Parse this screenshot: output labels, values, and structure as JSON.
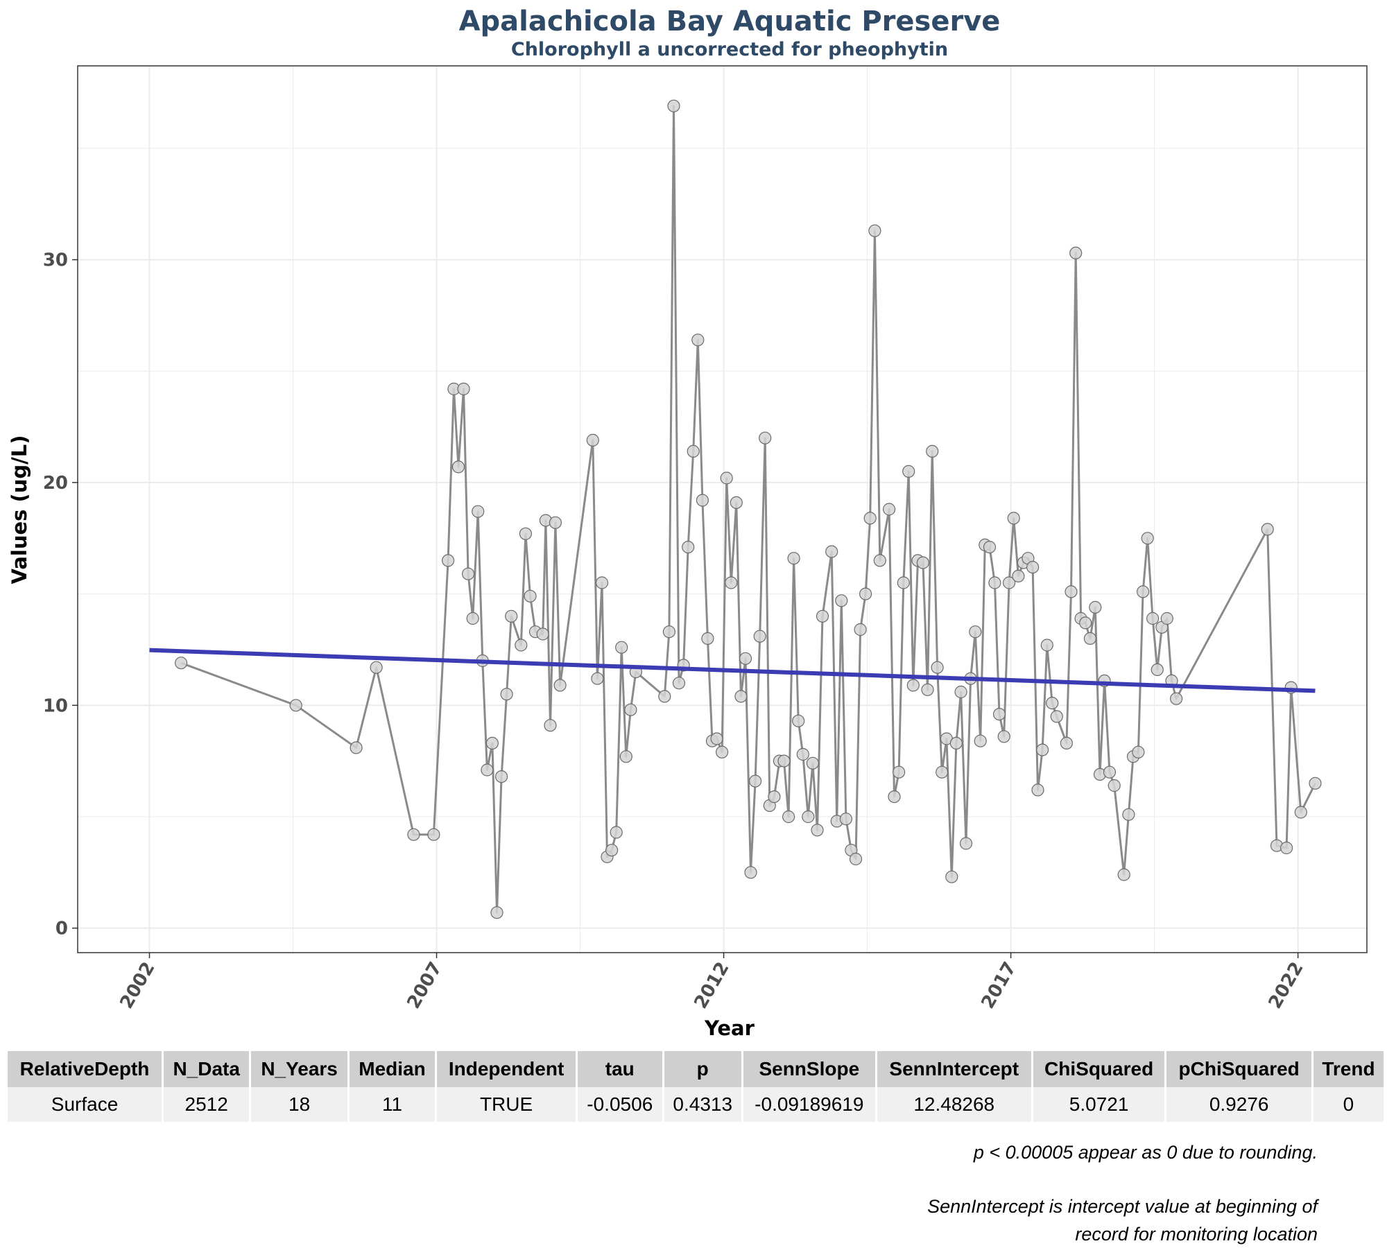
{
  "chart_data": {
    "type": "line",
    "title": "Apalachicola Bay Aquatic Preserve",
    "subtitle": "Chlorophyll a uncorrected for pheophytin",
    "xlabel": "Year",
    "ylabel": "Values (ug/L)",
    "xlim": [
      2000.75,
      2023.2
    ],
    "ylim": [
      -1.1,
      38.7
    ],
    "x_ticks": [
      2002,
      2007,
      2012,
      2017,
      2022
    ],
    "y_ticks": [
      0,
      10,
      20,
      30
    ],
    "grid": true,
    "colors": {
      "series_line": "#8a8a8a",
      "point_fill": "#d3d3d3",
      "trend_line": "#3b3bb3",
      "grid": "#ebebeb",
      "title": "#2e4a66"
    },
    "series": [
      {
        "points": [
          [
            2002.55,
            11.9
          ],
          [
            2004.55,
            10.0
          ],
          [
            2005.6,
            8.1
          ],
          [
            2005.95,
            11.7
          ],
          [
            2006.6,
            4.2
          ],
          [
            2006.95,
            4.2
          ],
          [
            2007.2,
            16.5
          ],
          [
            2007.3,
            24.2
          ],
          [
            2007.38,
            20.7
          ],
          [
            2007.47,
            24.2
          ],
          [
            2007.55,
            15.9
          ],
          [
            2007.63,
            13.9
          ],
          [
            2007.72,
            18.7
          ],
          [
            2007.8,
            12.0
          ],
          [
            2007.88,
            7.1
          ],
          [
            2007.97,
            8.3
          ],
          [
            2008.05,
            0.7
          ],
          [
            2008.13,
            6.8
          ],
          [
            2008.22,
            10.5
          ],
          [
            2008.3,
            14.0
          ],
          [
            2008.47,
            12.7
          ],
          [
            2008.55,
            17.7
          ],
          [
            2008.63,
            14.9
          ],
          [
            2008.72,
            13.3
          ],
          [
            2008.85,
            13.2
          ],
          [
            2008.9,
            18.3
          ],
          [
            2008.98,
            9.1
          ],
          [
            2009.07,
            18.2
          ],
          [
            2009.15,
            10.9
          ],
          [
            2009.72,
            21.9
          ],
          [
            2009.8,
            11.2
          ],
          [
            2009.88,
            15.5
          ],
          [
            2009.97,
            3.2
          ],
          [
            2010.05,
            3.5
          ],
          [
            2010.13,
            4.3
          ],
          [
            2010.22,
            12.6
          ],
          [
            2010.3,
            7.7
          ],
          [
            2010.38,
            9.8
          ],
          [
            2010.47,
            11.5
          ],
          [
            2010.97,
            10.4
          ],
          [
            2011.05,
            13.3
          ],
          [
            2011.13,
            36.9
          ],
          [
            2011.22,
            11.0
          ],
          [
            2011.3,
            11.8
          ],
          [
            2011.38,
            17.1
          ],
          [
            2011.47,
            21.4
          ],
          [
            2011.55,
            26.4
          ],
          [
            2011.63,
            19.2
          ],
          [
            2011.72,
            13.0
          ],
          [
            2011.8,
            8.4
          ],
          [
            2011.88,
            8.5
          ],
          [
            2011.97,
            7.9
          ],
          [
            2012.05,
            20.2
          ],
          [
            2012.13,
            15.5
          ],
          [
            2012.22,
            19.1
          ],
          [
            2012.3,
            10.4
          ],
          [
            2012.38,
            12.1
          ],
          [
            2012.47,
            2.5
          ],
          [
            2012.55,
            6.6
          ],
          [
            2012.63,
            13.1
          ],
          [
            2012.72,
            22.0
          ],
          [
            2012.8,
            5.5
          ],
          [
            2012.88,
            5.9
          ],
          [
            2012.97,
            7.5
          ],
          [
            2013.05,
            7.5
          ],
          [
            2013.13,
            5.0
          ],
          [
            2013.22,
            16.6
          ],
          [
            2013.3,
            9.3
          ],
          [
            2013.38,
            7.8
          ],
          [
            2013.47,
            5.0
          ],
          [
            2013.55,
            7.4
          ],
          [
            2013.63,
            4.4
          ],
          [
            2013.72,
            14.0
          ],
          [
            2013.88,
            16.9
          ],
          [
            2013.97,
            4.8
          ],
          [
            2014.05,
            14.7
          ],
          [
            2014.13,
            4.9
          ],
          [
            2014.22,
            3.5
          ],
          [
            2014.3,
            3.1
          ],
          [
            2014.38,
            13.4
          ],
          [
            2014.47,
            15.0
          ],
          [
            2014.55,
            18.4
          ],
          [
            2014.63,
            31.3
          ],
          [
            2014.72,
            16.5
          ],
          [
            2014.88,
            18.8
          ],
          [
            2014.97,
            5.9
          ],
          [
            2015.05,
            7.0
          ],
          [
            2015.13,
            15.5
          ],
          [
            2015.22,
            20.5
          ],
          [
            2015.3,
            10.9
          ],
          [
            2015.38,
            16.5
          ],
          [
            2015.47,
            16.4
          ],
          [
            2015.55,
            10.7
          ],
          [
            2015.63,
            21.4
          ],
          [
            2015.72,
            11.7
          ],
          [
            2015.8,
            7.0
          ],
          [
            2015.88,
            8.5
          ],
          [
            2015.97,
            2.3
          ],
          [
            2016.05,
            8.3
          ],
          [
            2016.13,
            10.6
          ],
          [
            2016.22,
            3.8
          ],
          [
            2016.3,
            11.2
          ],
          [
            2016.38,
            13.3
          ],
          [
            2016.47,
            8.4
          ],
          [
            2016.55,
            17.2
          ],
          [
            2016.63,
            17.1
          ],
          [
            2016.72,
            15.5
          ],
          [
            2016.8,
            9.6
          ],
          [
            2016.88,
            8.6
          ],
          [
            2016.97,
            15.5
          ],
          [
            2017.05,
            18.4
          ],
          [
            2017.13,
            15.8
          ],
          [
            2017.22,
            16.4
          ],
          [
            2017.3,
            16.6
          ],
          [
            2017.38,
            16.2
          ],
          [
            2017.47,
            6.2
          ],
          [
            2017.55,
            8.0
          ],
          [
            2017.63,
            12.7
          ],
          [
            2017.72,
            10.1
          ],
          [
            2017.8,
            9.5
          ],
          [
            2017.97,
            8.3
          ],
          [
            2018.05,
            15.1
          ],
          [
            2018.13,
            30.3
          ],
          [
            2018.22,
            13.9
          ],
          [
            2018.3,
            13.7
          ],
          [
            2018.38,
            13.0
          ],
          [
            2018.47,
            14.4
          ],
          [
            2018.55,
            6.9
          ],
          [
            2018.63,
            11.1
          ],
          [
            2018.72,
            7.0
          ],
          [
            2018.8,
            6.4
          ],
          [
            2018.97,
            2.4
          ],
          [
            2019.05,
            5.1
          ],
          [
            2019.13,
            7.7
          ],
          [
            2019.22,
            7.9
          ],
          [
            2019.3,
            15.1
          ],
          [
            2019.38,
            17.5
          ],
          [
            2019.47,
            13.9
          ],
          [
            2019.55,
            11.6
          ],
          [
            2019.63,
            13.5
          ],
          [
            2019.72,
            13.9
          ],
          [
            2019.8,
            11.1
          ],
          [
            2019.88,
            10.3
          ],
          [
            2021.47,
            17.9
          ],
          [
            2021.63,
            3.7
          ],
          [
            2021.8,
            3.6
          ],
          [
            2021.88,
            10.8
          ],
          [
            2022.05,
            5.2
          ],
          [
            2022.3,
            6.5
          ]
        ]
      }
    ],
    "trend_line": {
      "x_start": 2002.0,
      "x_end": 2022.3,
      "y_start": 12.48,
      "y_end": 10.65
    }
  },
  "stats_table": {
    "headers": [
      "RelativeDepth",
      "N_Data",
      "N_Years",
      "Median",
      "Independent",
      "tau",
      "p",
      "SennSlope",
      "SennIntercept",
      "ChiSquared",
      "pChiSquared",
      "Trend"
    ],
    "rows": [
      [
        "Surface",
        "2512",
        "18",
        "11",
        "TRUE",
        "-0.0506",
        "0.4313",
        "-0.09189619",
        "12.48268",
        "5.0721",
        "0.9276",
        "0"
      ]
    ]
  },
  "footnotes": {
    "rounding": "p < 0.00005 appear as 0 due to rounding.",
    "intercept_line1": "SennIntercept is intercept value at beginning of",
    "intercept_line2": "record for monitoring location"
  }
}
